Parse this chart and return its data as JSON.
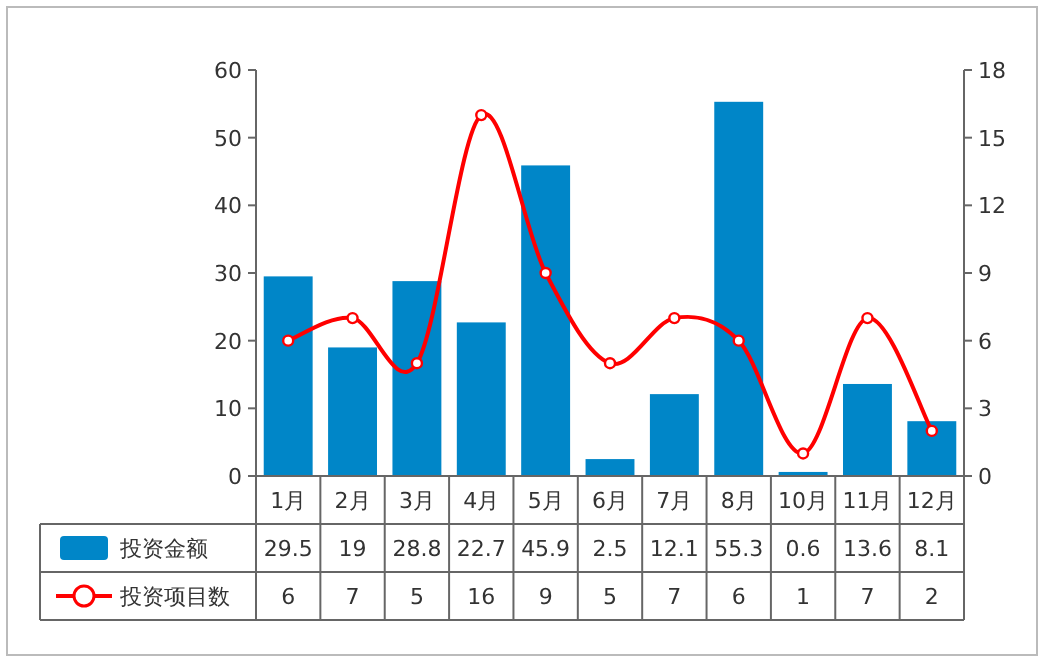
{
  "chart_data": {
    "type": "bar",
    "categories": [
      "1月",
      "2月",
      "3月",
      "4月",
      "5月",
      "6月",
      "7月",
      "8月",
      "10月",
      "11月",
      "12月"
    ],
    "series": [
      {
        "name": "投资金额",
        "color": "#0086c8",
        "values": [
          29.5,
          19,
          28.8,
          22.7,
          45.9,
          2.5,
          12.1,
          55.3,
          0.6,
          13.6,
          8.1
        ]
      },
      {
        "name": "投资项目数",
        "type": "line",
        "axis": "y2",
        "color": "#ff0000",
        "marker": "circle",
        "line_style": "solid",
        "values": [
          6,
          7,
          5,
          16,
          9,
          5,
          7,
          6,
          1,
          7,
          2
        ]
      }
    ],
    "ylim": [
      0,
      60
    ],
    "yticks": [
      0,
      10,
      20,
      30,
      40,
      50,
      60
    ],
    "y2lim": [
      0,
      18
    ],
    "y2ticks": [
      0,
      3,
      6,
      9,
      12,
      15,
      18
    ],
    "data_labels": true,
    "legend": "bottom left",
    "grid": false
  }
}
